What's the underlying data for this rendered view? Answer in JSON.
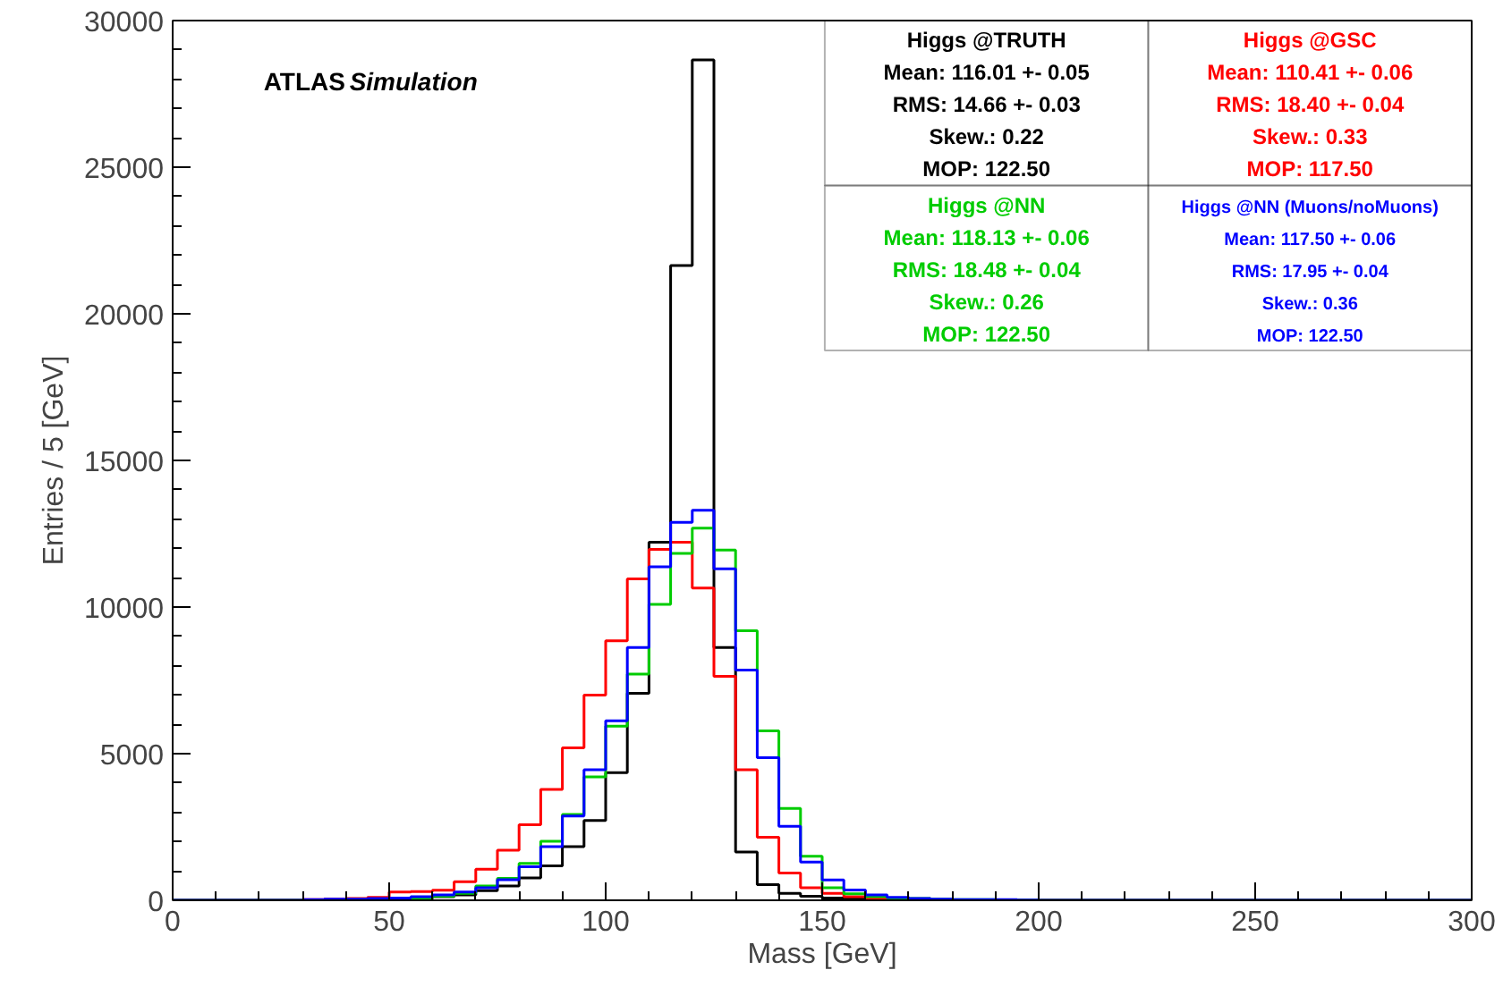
{
  "chart_data": {
    "type": "histogram",
    "xlabel": "Mass [GeV]",
    "ylabel": "Entries / 5 [GeV]",
    "bins": [
      0,
      5,
      10,
      15,
      20,
      25,
      30,
      35,
      40,
      45,
      50,
      55,
      60,
      65,
      70,
      75,
      80,
      85,
      90,
      95,
      100,
      105,
      110,
      115,
      120,
      125,
      130,
      135,
      140,
      145,
      150,
      155,
      160,
      165,
      170,
      175,
      180,
      185,
      190,
      195,
      200,
      205,
      210,
      215,
      220,
      225,
      230,
      235,
      240,
      245,
      250,
      255,
      260,
      265,
      270,
      275,
      280,
      285,
      290,
      295,
      300
    ],
    "series": [
      {
        "name": "Higgs @TRUTH",
        "color": "#000000",
        "values": [
          0,
          0,
          0,
          0,
          0,
          0,
          0,
          20,
          40,
          40,
          60,
          60,
          120,
          180,
          330,
          490,
          760,
          1170,
          1830,
          2720,
          4350,
          7060,
          12210,
          21650,
          28660,
          8620,
          1650,
          530,
          240,
          140,
          80,
          60,
          20,
          20,
          10,
          0,
          0,
          0,
          0,
          0,
          0,
          0,
          0,
          0,
          0,
          0,
          0,
          0,
          0,
          0,
          0,
          0,
          0,
          0,
          0,
          0,
          0,
          0,
          0,
          0
        ]
      },
      {
        "name": "Higgs @GSC",
        "color": "#ff0000",
        "values": [
          0,
          0,
          0,
          0,
          0,
          0,
          20,
          40,
          60,
          100,
          280,
          300,
          340,
          630,
          1060,
          1710,
          2580,
          3780,
          5200,
          7000,
          8850,
          10960,
          11970,
          12210,
          10650,
          7640,
          4450,
          2150,
          930,
          430,
          240,
          120,
          80,
          40,
          30,
          20,
          10,
          10,
          10,
          10,
          0,
          0,
          0,
          0,
          0,
          0,
          0,
          0,
          0,
          0,
          0,
          0,
          0,
          0,
          0,
          0,
          0,
          0,
          0,
          0
        ]
      },
      {
        "name": "Higgs @NN",
        "color": "#00cc00",
        "values": [
          0,
          0,
          0,
          0,
          0,
          0,
          0,
          10,
          20,
          20,
          40,
          80,
          140,
          240,
          490,
          750,
          1260,
          2010,
          2930,
          4210,
          5940,
          7710,
          10090,
          11830,
          12690,
          11940,
          9190,
          5780,
          3130,
          1500,
          430,
          220,
          120,
          80,
          60,
          40,
          20,
          20,
          10,
          10,
          0,
          0,
          0,
          0,
          0,
          0,
          0,
          0,
          0,
          0,
          0,
          0,
          0,
          0,
          0,
          0,
          0,
          0,
          0,
          0
        ]
      },
      {
        "name": "Higgs @NN (Muons/noMuons)",
        "color": "#0000ff",
        "values": [
          0,
          0,
          0,
          0,
          0,
          0,
          20,
          40,
          40,
          60,
          80,
          120,
          180,
          280,
          430,
          700,
          1140,
          1830,
          2870,
          4450,
          6120,
          8620,
          11370,
          12890,
          13300,
          11300,
          7850,
          4860,
          2520,
          1300,
          690,
          350,
          180,
          100,
          60,
          40,
          20,
          20,
          20,
          10,
          0,
          0,
          0,
          0,
          0,
          0,
          0,
          0,
          0,
          0,
          0,
          0,
          0,
          0,
          0,
          0,
          0,
          0,
          0,
          0
        ]
      }
    ],
    "annotations": [
      "ATLAS",
      "Simulation",
      "Mean: 116.01 +- 0.05",
      "RMS: 14.66 +- 0.03",
      "Skew.: 0.22",
      "MOP: 122.50",
      "Mean: 110.41 +- 0.06",
      "RMS: 18.40 +- 0.04",
      "Skew.: 0.33",
      "MOP: 117.50",
      "Mean: 118.13 +- 0.06",
      "RMS: 18.48 +- 0.04",
      "Skew.: 0.26",
      "MOP: 122.50",
      "Mean: 117.50 +- 0.06",
      "RMS: 17.95 +- 0.04",
      "Skew.: 0.36",
      "MOP: 122.50"
    ],
    "xlim": [
      0,
      300
    ],
    "ylim": [
      0,
      30000
    ],
    "xticks": [
      0,
      50,
      100,
      150,
      200,
      250,
      300
    ],
    "yticks": [
      0,
      5000,
      10000,
      15000,
      20000,
      25000,
      30000
    ],
    "legend": "top right",
    "grid": false
  }
}
